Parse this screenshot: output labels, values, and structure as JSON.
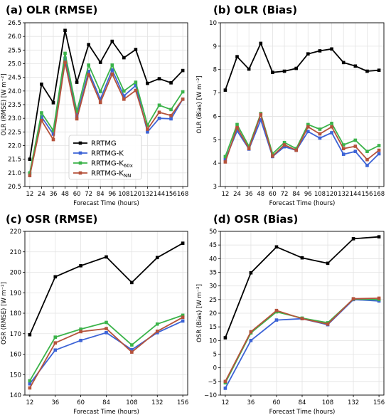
{
  "chart_data": [
    {
      "type": "line",
      "title": "(a) OLR (RMSE)",
      "xlabel": "Forecast Time (hours)",
      "ylabel": "OLR (RMSE) [W m⁻²]",
      "ylim": [
        20.5,
        26.5
      ],
      "yticks": [
        "20.5",
        "21.0",
        "21.5",
        "22.0",
        "22.5",
        "23.0",
        "23.5",
        "24.0",
        "24.5",
        "25.0",
        "25.5",
        "26.0",
        "26.5"
      ],
      "x": [
        12,
        24,
        36,
        48,
        60,
        72,
        84,
        96,
        108,
        120,
        132,
        144,
        156,
        168
      ],
      "grid": true,
      "legend": "lower-left",
      "series": [
        {
          "name": "RRTMG",
          "color": "#000000",
          "values": [
            21.5,
            24.25,
            23.57,
            26.22,
            24.32,
            25.7,
            25.05,
            25.82,
            25.22,
            25.52,
            24.28,
            24.45,
            24.3,
            24.75
          ]
        },
        {
          "name": "RRTMG-K",
          "color": "#3c63d6",
          "values": [
            21.0,
            23.05,
            22.42,
            25.2,
            23.08,
            24.72,
            23.7,
            24.77,
            23.82,
            24.2,
            22.5,
            23.0,
            22.98,
            23.7
          ]
        },
        {
          "name": "RRTMG-K",
          "name_sub": "60x",
          "color": "#3bb34a",
          "values": [
            21.0,
            23.2,
            22.55,
            25.38,
            23.25,
            24.95,
            23.98,
            24.95,
            24.0,
            24.32,
            22.75,
            23.48,
            23.32,
            23.97
          ]
        },
        {
          "name": "RRTMG-K",
          "name_sub": "NN",
          "color": "#b5523b",
          "values": [
            20.9,
            22.92,
            22.22,
            25.05,
            22.98,
            24.6,
            23.58,
            24.62,
            23.7,
            24.02,
            22.6,
            23.22,
            23.1,
            23.7
          ]
        }
      ]
    },
    {
      "type": "line",
      "title": "(b) OLR (Bias)",
      "xlabel": "Forecast Time (hours)",
      "ylabel": "OLR (Bias) [W m⁻²]",
      "ylim": [
        3,
        10
      ],
      "yticks": [
        "3",
        "4",
        "5",
        "6",
        "7",
        "8",
        "9",
        "10"
      ],
      "x": [
        12,
        24,
        36,
        48,
        60,
        72,
        84,
        96,
        108,
        120,
        132,
        144,
        156,
        168
      ],
      "grid": true,
      "series": [
        {
          "name": "RRTMG",
          "color": "#000000",
          "values": [
            7.12,
            8.55,
            8.02,
            9.12,
            7.88,
            7.93,
            8.05,
            8.67,
            8.8,
            8.88,
            8.3,
            8.15,
            7.93,
            7.97
          ]
        },
        {
          "name": "RRTMG-K",
          "color": "#3c63d6",
          "values": [
            4.15,
            5.38,
            4.6,
            5.85,
            4.28,
            4.7,
            4.55,
            5.35,
            5.07,
            5.3,
            4.38,
            4.5,
            3.9,
            4.4
          ]
        },
        {
          "name": "RRTMG-K",
          "name_sub": "60x",
          "color": "#3bb34a",
          "values": [
            4.28,
            5.65,
            4.72,
            6.12,
            4.4,
            4.88,
            4.62,
            5.65,
            5.45,
            5.7,
            4.78,
            4.98,
            4.5,
            4.75
          ]
        },
        {
          "name": "RRTMG-K",
          "name_sub": "NN",
          "color": "#b5523b",
          "values": [
            4.05,
            5.52,
            4.62,
            6.08,
            4.3,
            4.78,
            4.55,
            5.55,
            5.25,
            5.55,
            4.62,
            4.72,
            4.15,
            4.55
          ]
        }
      ]
    },
    {
      "type": "line",
      "title": "(c) OSR (RMSE)",
      "xlabel": "Forecast Time (hours)",
      "ylabel": "OSR (RMSE) [W m⁻²]",
      "ylim": [
        140,
        220
      ],
      "yticks": [
        "140",
        "150",
        "160",
        "170",
        "180",
        "190",
        "200",
        "210",
        "220"
      ],
      "x": [
        12,
        36,
        60,
        84,
        108,
        132,
        156
      ],
      "grid": true,
      "series": [
        {
          "name": "RRTMG",
          "color": "#000000",
          "values": [
            169.5,
            197.8,
            203.2,
            207.5,
            195.0,
            207.2,
            214.2
          ]
        },
        {
          "name": "RRTMG-K",
          "color": "#3c63d6",
          "values": [
            145.5,
            162.0,
            166.7,
            170.5,
            162.2,
            170.5,
            176.2
          ]
        },
        {
          "name": "RRTMG-K",
          "name_sub": "60x",
          "color": "#3bb34a",
          "values": [
            147.0,
            168.3,
            172.2,
            175.5,
            164.5,
            174.7,
            179.0
          ]
        },
        {
          "name": "RRTMG-K",
          "name_sub": "NN",
          "color": "#b5523b",
          "values": [
            143.5,
            165.5,
            171.0,
            172.5,
            161.0,
            171.2,
            178.0
          ]
        }
      ]
    },
    {
      "type": "line",
      "title": "(d) OSR (Bias)",
      "xlabel": "Forecast Time (hours)",
      "ylabel": "OSR (Bias) [W m⁻²]",
      "ylim": [
        -10,
        50
      ],
      "yticks": [
        "−10",
        "−5",
        "0",
        "5",
        "10",
        "15",
        "20",
        "25",
        "30",
        "35",
        "40",
        "45",
        "50"
      ],
      "x": [
        12,
        36,
        60,
        84,
        108,
        132,
        156
      ],
      "grid": true,
      "series": [
        {
          "name": "RRTMG",
          "color": "#000000",
          "values": [
            11.0,
            34.8,
            44.3,
            40.3,
            38.3,
            47.3,
            48.0
          ]
        },
        {
          "name": "RRTMG-K",
          "color": "#3c63d6",
          "values": [
            -7.5,
            10.0,
            17.5,
            18.0,
            15.8,
            25.0,
            24.5
          ]
        },
        {
          "name": "RRTMG-K",
          "name_sub": "60x",
          "color": "#3bb34a",
          "values": [
            -5.5,
            12.8,
            20.5,
            18.2,
            16.5,
            25.2,
            25.0
          ]
        },
        {
          "name": "RRTMG-K",
          "name_sub": "NN",
          "color": "#b5523b",
          "values": [
            -5.0,
            13.2,
            21.0,
            18.0,
            16.0,
            25.3,
            25.5
          ]
        }
      ]
    }
  ]
}
